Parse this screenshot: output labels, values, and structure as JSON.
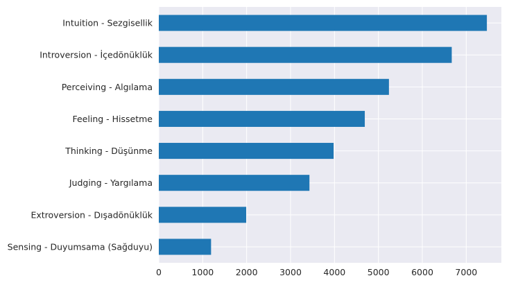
{
  "chart_data": {
    "type": "bar",
    "orientation": "horizontal",
    "categories": [
      "Intuition - Sezgisellik",
      "Introversion - İçedönüklük",
      "Perceiving - Algılama",
      "Feeling - Hissetme",
      "Thinking - Düşünme",
      "Judging - Yargılama",
      "Extroversion - Dışadönüklük",
      "Sensing - Duyumsama (Sağduyu)"
    ],
    "values": [
      7470,
      6670,
      5240,
      4690,
      3980,
      3430,
      1990,
      1190
    ],
    "xticks": [
      "0",
      "1000",
      "2000",
      "3000",
      "4000",
      "5000",
      "6000",
      "7000"
    ],
    "xlim": [
      0,
      7800
    ],
    "title": "",
    "xlabel": "",
    "ylabel": "",
    "grid": true,
    "bar_color": "#1f77b4",
    "background_color": "#eaeaf2",
    "grid_color": "#ffffff"
  }
}
